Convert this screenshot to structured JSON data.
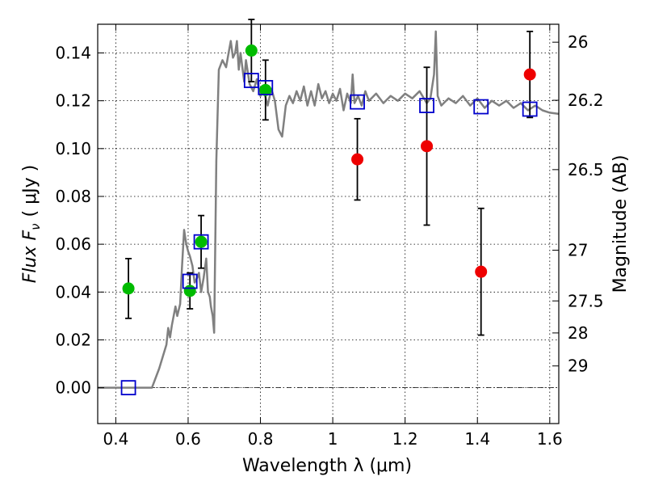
{
  "chart_data": {
    "type": "scatter",
    "xlabel": "Wavelength  λ (μm)",
    "ylabel": "Flux  F",
    "ylabel_sub": "ν",
    "ylabel_unit": "( μJy )",
    "y2label": "Magnitude (AB)",
    "xlim": [
      0.35,
      1.625
    ],
    "ylim": [
      -0.015,
      0.152
    ],
    "grid": true,
    "x_ticks": [
      0.4,
      0.6,
      0.8,
      1.0,
      1.2,
      1.4,
      1.6
    ],
    "x_tick_labels": [
      "0.4",
      "0.6",
      "0.8",
      "1",
      "1.2",
      "1.4",
      "1.6"
    ],
    "y_ticks": [
      0.0,
      0.02,
      0.04,
      0.06,
      0.08,
      0.1,
      0.12,
      0.14
    ],
    "y_tick_labels": [
      "0.00",
      "0.02",
      "0.04",
      "0.06",
      "0.08",
      "0.10",
      "0.12",
      "0.14"
    ],
    "y2_ticks": [
      {
        "label": "26",
        "flux": 0.1445
      },
      {
        "label": "26.2",
        "flux": 0.1202
      },
      {
        "label": "26.5",
        "flux": 0.0912
      },
      {
        "label": "27",
        "flux": 0.0575
      },
      {
        "label": "27.5",
        "flux": 0.0363
      },
      {
        "label": "28",
        "flux": 0.0229
      },
      {
        "label": "29",
        "flux": 0.0091
      }
    ],
    "reference_line_y": 0.0,
    "colors": {
      "model": "#808080",
      "green": "#00bb00",
      "red": "#ee0000",
      "blue": "#0000cc",
      "errorbar": "#000000"
    },
    "series": [
      {
        "marker": "circle",
        "color": "green",
        "points": [
          {
            "x": 0.435,
            "y": 0.0415,
            "err": 0.0125
          },
          {
            "x": 0.605,
            "y": 0.0405,
            "err": 0.0075
          },
          {
            "x": 0.636,
            "y": 0.061,
            "err": 0.011
          },
          {
            "x": 0.775,
            "y": 0.141,
            "err": 0.013
          },
          {
            "x": 0.814,
            "y": 0.1245,
            "err": 0.0125
          }
        ]
      },
      {
        "marker": "circle",
        "color": "red",
        "points": [
          {
            "x": 1.068,
            "y": 0.0955,
            "err": 0.017
          },
          {
            "x": 1.26,
            "y": 0.101,
            "err": 0.033
          },
          {
            "x": 1.41,
            "y": 0.0485,
            "err": 0.0265
          },
          {
            "x": 1.545,
            "y": 0.131,
            "err": 0.018
          }
        ]
      },
      {
        "marker": "square",
        "color": "blue",
        "points": [
          {
            "x": 0.435,
            "y": 0.0
          },
          {
            "x": 0.605,
            "y": 0.0445
          },
          {
            "x": 0.636,
            "y": 0.061
          },
          {
            "x": 0.775,
            "y": 0.1285
          },
          {
            "x": 0.814,
            "y": 0.1255
          },
          {
            "x": 1.068,
            "y": 0.1195
          },
          {
            "x": 1.26,
            "y": 0.118
          },
          {
            "x": 1.41,
            "y": 0.1175
          },
          {
            "x": 1.545,
            "y": 0.1165
          }
        ]
      },
      {
        "marker": "line",
        "color": "model",
        "points": [
          {
            "x": 0.35,
            "y": 0.0
          },
          {
            "x": 0.5,
            "y": 0.0
          },
          {
            "x": 0.52,
            "y": 0.008
          },
          {
            "x": 0.54,
            "y": 0.018
          },
          {
            "x": 0.545,
            "y": 0.025
          },
          {
            "x": 0.55,
            "y": 0.021
          },
          {
            "x": 0.555,
            "y": 0.026
          },
          {
            "x": 0.565,
            "y": 0.034
          },
          {
            "x": 0.57,
            "y": 0.03
          },
          {
            "x": 0.578,
            "y": 0.035
          },
          {
            "x": 0.583,
            "y": 0.05
          },
          {
            "x": 0.589,
            "y": 0.066
          },
          {
            "x": 0.595,
            "y": 0.06
          },
          {
            "x": 0.6,
            "y": 0.057
          },
          {
            "x": 0.605,
            "y": 0.055
          },
          {
            "x": 0.612,
            "y": 0.051
          },
          {
            "x": 0.618,
            "y": 0.044
          },
          {
            "x": 0.625,
            "y": 0.046
          },
          {
            "x": 0.63,
            "y": 0.048
          },
          {
            "x": 0.636,
            "y": 0.04
          },
          {
            "x": 0.643,
            "y": 0.046
          },
          {
            "x": 0.65,
            "y": 0.054
          },
          {
            "x": 0.655,
            "y": 0.04
          },
          {
            "x": 0.66,
            "y": 0.038
          },
          {
            "x": 0.663,
            "y": 0.034
          },
          {
            "x": 0.668,
            "y": 0.03
          },
          {
            "x": 0.672,
            "y": 0.023
          },
          {
            "x": 0.678,
            "y": 0.095
          },
          {
            "x": 0.685,
            "y": 0.133
          },
          {
            "x": 0.695,
            "y": 0.137
          },
          {
            "x": 0.705,
            "y": 0.134
          },
          {
            "x": 0.712,
            "y": 0.14
          },
          {
            "x": 0.718,
            "y": 0.145
          },
          {
            "x": 0.724,
            "y": 0.138
          },
          {
            "x": 0.73,
            "y": 0.14
          },
          {
            "x": 0.735,
            "y": 0.145
          },
          {
            "x": 0.74,
            "y": 0.133
          },
          {
            "x": 0.745,
            "y": 0.14
          },
          {
            "x": 0.75,
            "y": 0.134
          },
          {
            "x": 0.755,
            "y": 0.128
          },
          {
            "x": 0.76,
            "y": 0.137
          },
          {
            "x": 0.77,
            "y": 0.127
          },
          {
            "x": 0.78,
            "y": 0.124
          },
          {
            "x": 0.79,
            "y": 0.129
          },
          {
            "x": 0.8,
            "y": 0.122
          },
          {
            "x": 0.81,
            "y": 0.124
          },
          {
            "x": 0.82,
            "y": 0.118
          },
          {
            "x": 0.83,
            "y": 0.125
          },
          {
            "x": 0.84,
            "y": 0.12
          },
          {
            "x": 0.85,
            "y": 0.108
          },
          {
            "x": 0.86,
            "y": 0.105
          },
          {
            "x": 0.87,
            "y": 0.118
          },
          {
            "x": 0.88,
            "y": 0.122
          },
          {
            "x": 0.89,
            "y": 0.119
          },
          {
            "x": 0.9,
            "y": 0.124
          },
          {
            "x": 0.91,
            "y": 0.12
          },
          {
            "x": 0.92,
            "y": 0.126
          },
          {
            "x": 0.93,
            "y": 0.118
          },
          {
            "x": 0.94,
            "y": 0.124
          },
          {
            "x": 0.95,
            "y": 0.118
          },
          {
            "x": 0.96,
            "y": 0.127
          },
          {
            "x": 0.97,
            "y": 0.121
          },
          {
            "x": 0.98,
            "y": 0.124
          },
          {
            "x": 0.99,
            "y": 0.119
          },
          {
            "x": 1.0,
            "y": 0.123
          },
          {
            "x": 1.01,
            "y": 0.12
          },
          {
            "x": 1.02,
            "y": 0.125
          },
          {
            "x": 1.03,
            "y": 0.116
          },
          {
            "x": 1.04,
            "y": 0.123
          },
          {
            "x": 1.05,
            "y": 0.119
          },
          {
            "x": 1.055,
            "y": 0.131
          },
          {
            "x": 1.06,
            "y": 0.119
          },
          {
            "x": 1.07,
            "y": 0.122
          },
          {
            "x": 1.08,
            "y": 0.118
          },
          {
            "x": 1.09,
            "y": 0.124
          },
          {
            "x": 1.1,
            "y": 0.12
          },
          {
            "x": 1.12,
            "y": 0.123
          },
          {
            "x": 1.14,
            "y": 0.119
          },
          {
            "x": 1.16,
            "y": 0.122
          },
          {
            "x": 1.18,
            "y": 0.12
          },
          {
            "x": 1.2,
            "y": 0.123
          },
          {
            "x": 1.22,
            "y": 0.121
          },
          {
            "x": 1.24,
            "y": 0.124
          },
          {
            "x": 1.26,
            "y": 0.119
          },
          {
            "x": 1.27,
            "y": 0.121
          },
          {
            "x": 1.28,
            "y": 0.131
          },
          {
            "x": 1.285,
            "y": 0.149
          },
          {
            "x": 1.29,
            "y": 0.122
          },
          {
            "x": 1.3,
            "y": 0.118
          },
          {
            "x": 1.32,
            "y": 0.121
          },
          {
            "x": 1.34,
            "y": 0.119
          },
          {
            "x": 1.36,
            "y": 0.122
          },
          {
            "x": 1.38,
            "y": 0.118
          },
          {
            "x": 1.4,
            "y": 0.121
          },
          {
            "x": 1.42,
            "y": 0.117
          },
          {
            "x": 1.44,
            "y": 0.12
          },
          {
            "x": 1.46,
            "y": 0.118
          },
          {
            "x": 1.48,
            "y": 0.12
          },
          {
            "x": 1.5,
            "y": 0.117
          },
          {
            "x": 1.52,
            "y": 0.119
          },
          {
            "x": 1.54,
            "y": 0.116
          },
          {
            "x": 1.56,
            "y": 0.118
          },
          {
            "x": 1.58,
            "y": 0.116
          },
          {
            "x": 1.6,
            "y": 0.115
          },
          {
            "x": 1.625,
            "y": 0.1145
          }
        ]
      }
    ]
  }
}
